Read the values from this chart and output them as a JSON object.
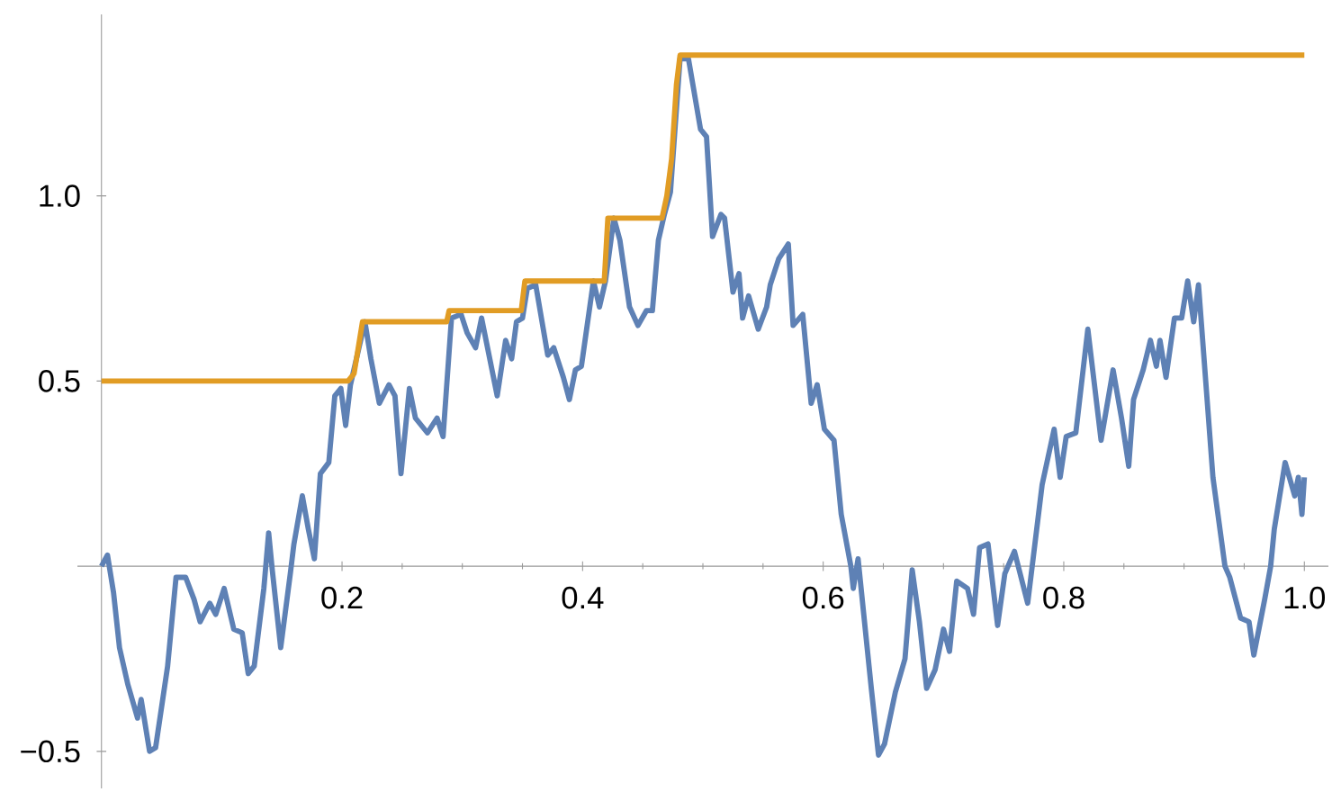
{
  "chart_data": {
    "type": "line",
    "xlim": [
      -0.02,
      1.02
    ],
    "ylim": [
      -0.6,
      1.49
    ],
    "xticks": [
      {
        "value": 0.2,
        "label": "0.2"
      },
      {
        "value": 0.4,
        "label": "0.4"
      },
      {
        "value": 0.6,
        "label": "0.6"
      },
      {
        "value": 0.8,
        "label": "0.8"
      },
      {
        "value": 1.0,
        "label": "1.0"
      }
    ],
    "yticks": [
      {
        "value": -0.5,
        "label": "−0.5"
      },
      {
        "value": 0.5,
        "label": "0.5"
      },
      {
        "value": 1.0,
        "label": "1.0"
      }
    ],
    "marker": "none",
    "line_style": "solid",
    "series": [
      {
        "color": "#5e81b5",
        "x": [
          0,
          0.005,
          0.01,
          0.015,
          0.022,
          0.03,
          0.033,
          0.04,
          0.045,
          0.055,
          0.062,
          0.07,
          0.077,
          0.082,
          0.09,
          0.095,
          0.102,
          0.11,
          0.117,
          0.122,
          0.127,
          0.135,
          0.139,
          0.142,
          0.149,
          0.157,
          0.16,
          0.167,
          0.172,
          0.177,
          0.182,
          0.189,
          0.194,
          0.199,
          0.203,
          0.207,
          0.219,
          0.224,
          0.231,
          0.239,
          0.244,
          0.249,
          0.256,
          0.261,
          0.271,
          0.279,
          0.284,
          0.291,
          0.299,
          0.304,
          0.311,
          0.316,
          0.329,
          0.336,
          0.341,
          0.345,
          0.35,
          0.354,
          0.361,
          0.371,
          0.376,
          0.384,
          0.389,
          0.394,
          0.399,
          0.409,
          0.414,
          0.419,
          0.426,
          0.431,
          0.439,
          0.446,
          0.453,
          0.458,
          0.463,
          0.468,
          0.473,
          0.481,
          0.488,
          0.498,
          0.503,
          0.508,
          0.515,
          0.518,
          0.525,
          0.53,
          0.533,
          0.538,
          0.546,
          0.553,
          0.556,
          0.563,
          0.571,
          0.575,
          0.583,
          0.59,
          0.595,
          0.601,
          0.609,
          0.615,
          0.623,
          0.625,
          0.629,
          0.64,
          0.646,
          0.651,
          0.66,
          0.668,
          0.674,
          0.68,
          0.686,
          0.693,
          0.7,
          0.705,
          0.711,
          0.72,
          0.725,
          0.73,
          0.737,
          0.745,
          0.751,
          0.759,
          0.77,
          0.782,
          0.792,
          0.797,
          0.802,
          0.81,
          0.82,
          0.831,
          0.841,
          0.848,
          0.854,
          0.858,
          0.866,
          0.872,
          0.877,
          0.88,
          0.885,
          0.892,
          0.898,
          0.903,
          0.908,
          0.912,
          0.924,
          0.934,
          0.938,
          0.947,
          0.954,
          0.958,
          0.967,
          0.972,
          0.975,
          0.984,
          0.992,
          0.995,
          0.998,
          1.0
        ],
        "values": [
          0.0,
          0.03,
          -0.07,
          -0.22,
          -0.32,
          -0.41,
          -0.36,
          -0.5,
          -0.49,
          -0.27,
          -0.03,
          -0.03,
          -0.09,
          -0.15,
          -0.1,
          -0.13,
          -0.06,
          -0.17,
          -0.18,
          -0.29,
          -0.27,
          -0.06,
          0.09,
          -0.01,
          -0.22,
          -0.02,
          0.06,
          0.19,
          0.1,
          0.02,
          0.25,
          0.28,
          0.46,
          0.48,
          0.38,
          0.49,
          0.66,
          0.56,
          0.44,
          0.49,
          0.46,
          0.25,
          0.48,
          0.4,
          0.36,
          0.4,
          0.35,
          0.67,
          0.68,
          0.63,
          0.59,
          0.67,
          0.46,
          0.61,
          0.56,
          0.66,
          0.67,
          0.75,
          0.76,
          0.57,
          0.59,
          0.51,
          0.45,
          0.53,
          0.54,
          0.77,
          0.7,
          0.77,
          0.94,
          0.88,
          0.7,
          0.65,
          0.69,
          0.69,
          0.88,
          0.95,
          1.01,
          1.37,
          1.37,
          1.18,
          1.16,
          0.89,
          0.95,
          0.94,
          0.74,
          0.79,
          0.67,
          0.73,
          0.64,
          0.7,
          0.76,
          0.83,
          0.87,
          0.65,
          0.68,
          0.44,
          0.49,
          0.37,
          0.34,
          0.14,
          0.0,
          -0.06,
          0.02,
          -0.33,
          -0.51,
          -0.48,
          -0.34,
          -0.25,
          -0.01,
          -0.15,
          -0.33,
          -0.28,
          -0.17,
          -0.23,
          -0.04,
          -0.06,
          -0.13,
          0.05,
          0.06,
          -0.16,
          -0.02,
          0.04,
          -0.1,
          0.22,
          0.37,
          0.24,
          0.35,
          0.36,
          0.64,
          0.34,
          0.53,
          0.4,
          0.27,
          0.45,
          0.53,
          0.61,
          0.54,
          0.61,
          0.51,
          0.67,
          0.67,
          0.77,
          0.66,
          0.76,
          0.24,
          0.0,
          -0.03,
          -0.14,
          -0.15,
          -0.24,
          -0.09,
          0.0,
          0.1,
          0.28,
          0.19,
          0.24,
          0.14,
          0.24
        ]
      },
      {
        "color": "#e19c24",
        "x": [
          0,
          0.205,
          0.21,
          0.217,
          0.287,
          0.289,
          0.349,
          0.352,
          0.418,
          0.421,
          0.466,
          0.47,
          0.474,
          0.478,
          0.481,
          1.0
        ],
        "values": [
          0.5,
          0.5,
          0.52,
          0.66,
          0.66,
          0.69,
          0.69,
          0.77,
          0.77,
          0.94,
          0.94,
          1.0,
          1.1,
          1.3,
          1.38,
          1.38
        ]
      }
    ]
  }
}
